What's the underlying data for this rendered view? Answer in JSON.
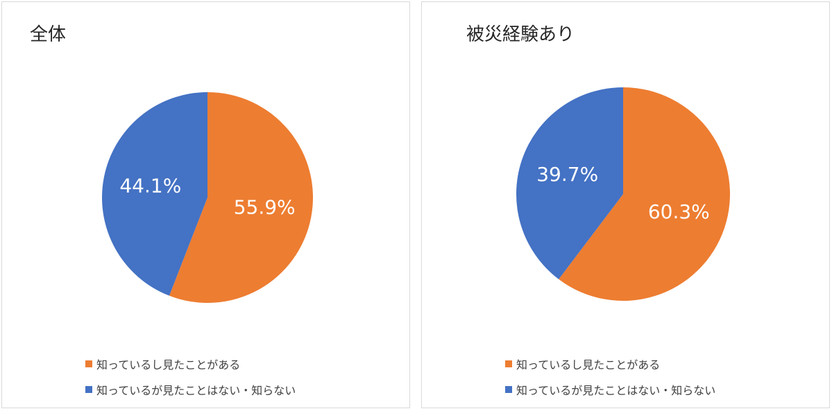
{
  "legend": {
    "items": [
      {
        "label": "知っているし見たことがある",
        "color": "#ED7D31"
      },
      {
        "label": "知っているが見たことはない・知らない",
        "color": "#4472C4"
      }
    ]
  },
  "chart_data": [
    {
      "type": "pie",
      "title": "全体",
      "start_angle": "12 o'clock, clockwise",
      "slices": [
        {
          "label": "知っているし見たことがある",
          "value": 55.9,
          "display": "55.9%",
          "color": "#ED7D31"
        },
        {
          "label": "知っているが見たことはない・知らない",
          "value": 44.1,
          "display": "44.1%",
          "color": "#4472C4"
        }
      ],
      "legend_position": "bottom"
    },
    {
      "type": "pie",
      "title": "被災経験あり",
      "start_angle": "12 o'clock, clockwise",
      "slices": [
        {
          "label": "知っているし見たことがある",
          "value": 60.3,
          "display": "60.3%",
          "color": "#ED7D31"
        },
        {
          "label": "知っているが見たことはない・知らない",
          "value": 39.7,
          "display": "39.7%",
          "color": "#4472C4"
        }
      ],
      "legend_position": "bottom"
    }
  ]
}
